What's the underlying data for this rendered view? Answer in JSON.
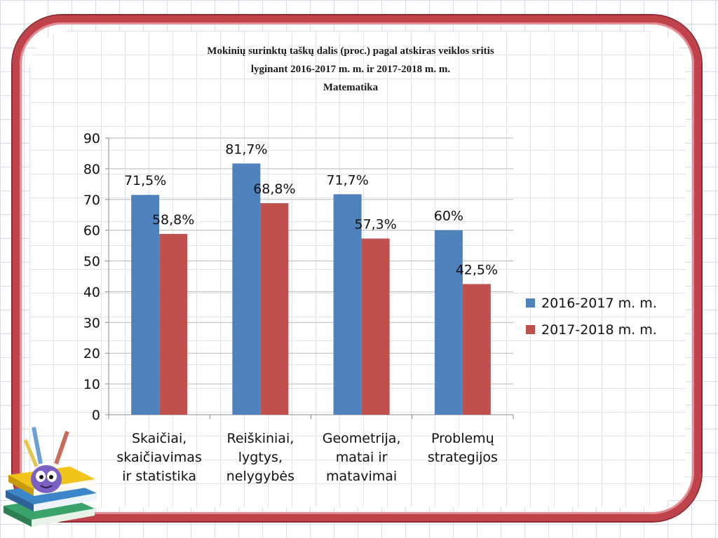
{
  "chart_data": {
    "type": "bar",
    "title_lines": [
      "Mokinių surinktų taškų dalis (proc.) pagal atskiras veiklos sritis",
      "lyginant 2016-2017 m. m. ir 2017-2018 m. m.",
      "Matematika"
    ],
    "categories": [
      [
        "Skaičiai,",
        "skaičiavimas",
        "ir statistika"
      ],
      [
        "Reiškiniai,",
        "lygtys,",
        "nelygybės"
      ],
      [
        "Geometrija,",
        "matai ir",
        "matavimai"
      ],
      [
        "Problemų",
        "strategijos"
      ]
    ],
    "series": [
      {
        "name": "2016-2017 m. m.",
        "color": "#4f81bd",
        "values": [
          71.5,
          81.7,
          71.7,
          60
        ],
        "labels": [
          "71,5%",
          "81,7%",
          "71,7%",
          "60%"
        ]
      },
      {
        "name": "2017-2018 m. m.",
        "color": "#c0504d",
        "values": [
          58.8,
          68.8,
          57.3,
          42.5
        ],
        "labels": [
          "58,8%",
          "68,8%",
          "57,3%",
          "42,5%"
        ]
      }
    ],
    "ylim": [
      0,
      90
    ],
    "yticks": [
      0,
      10,
      20,
      30,
      40,
      50,
      60,
      70,
      80,
      90
    ],
    "grid": true,
    "legend_position": "right"
  }
}
